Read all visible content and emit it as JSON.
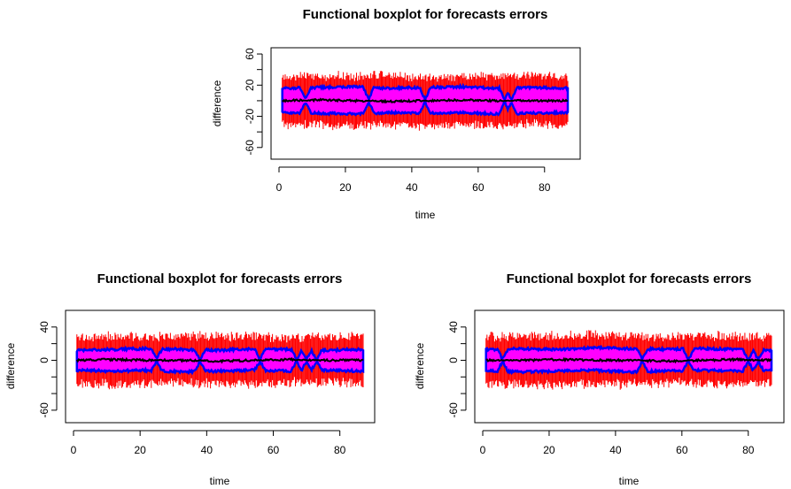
{
  "chart_data": [
    {
      "type": "area",
      "title": "Functional boxplot for forecasts errors",
      "xlabel": "time",
      "ylabel": "difference",
      "xlim": [
        0,
        87
      ],
      "ylim": [
        -75,
        68
      ],
      "xticks": [
        0,
        20,
        40,
        60,
        80
      ],
      "yticks": [
        60,
        20,
        -20,
        -60
      ],
      "grid": false,
      "colors": {
        "outer": "#ff0000",
        "band": "#ff00ff",
        "edge": "#0000ff",
        "median": "#000000"
      },
      "pinch_times": [
        8,
        27,
        44,
        68,
        70
      ],
      "series": [
        {
          "name": "Outer envelope",
          "upper": [
            28,
            30,
            29,
            31,
            28,
            29,
            30,
            31,
            29
          ],
          "lower": [
            -28,
            -29,
            -30,
            -28,
            -31,
            -29,
            -30,
            -28,
            -29
          ]
        },
        {
          "name": "Central region",
          "upper": [
            16,
            17,
            18,
            16,
            17,
            18,
            16,
            17,
            16
          ],
          "lower": [
            -15,
            -16,
            -17,
            -15,
            -16,
            -15,
            -17,
            -16,
            -15
          ]
        },
        {
          "name": "Median",
          "values": [
            0,
            1,
            0,
            -1,
            0,
            1,
            0,
            0,
            0
          ]
        }
      ]
    },
    {
      "type": "area",
      "title": "Functional boxplot for forecasts errors",
      "xlabel": "time",
      "ylabel": "difference",
      "xlim": [
        0,
        87
      ],
      "ylim": [
        -75,
        60
      ],
      "xticks": [
        0,
        20,
        40,
        60,
        80
      ],
      "yticks": [
        40,
        0,
        -60
      ],
      "grid": false,
      "colors": {
        "outer": "#ff0000",
        "band": "#ff00ff",
        "edge": "#0000ff",
        "median": "#000000"
      },
      "pinch_times": [
        25,
        38,
        56,
        67,
        70,
        73
      ],
      "series": [
        {
          "name": "Outer envelope",
          "upper": [
            25,
            27,
            26,
            28,
            26,
            27,
            25,
            26,
            27
          ],
          "lower": [
            -25,
            -27,
            -26,
            -25,
            -27,
            -26,
            -25,
            -24,
            -26
          ]
        },
        {
          "name": "Central region",
          "upper": [
            12,
            13,
            14,
            13,
            12,
            14,
            13,
            12,
            13
          ],
          "lower": [
            -12,
            -13,
            -12,
            -14,
            -13,
            -12,
            -13,
            -12,
            -13
          ]
        },
        {
          "name": "Median",
          "values": [
            0,
            1,
            0,
            0,
            -1,
            0,
            1,
            0,
            0
          ]
        }
      ]
    },
    {
      "type": "area",
      "title": "Functional boxplot for forecasts errors",
      "xlabel": "time",
      "ylabel": "difference",
      "xlim": [
        0,
        87
      ],
      "ylim": [
        -75,
        60
      ],
      "xticks": [
        0,
        20,
        40,
        60,
        80
      ],
      "yticks": [
        40,
        0,
        -60
      ],
      "grid": false,
      "colors": {
        "outer": "#ff0000",
        "band": "#ff00ff",
        "edge": "#0000ff",
        "median": "#000000"
      },
      "pinch_times": [
        6,
        48,
        62,
        80,
        83
      ],
      "series": [
        {
          "name": "Outer envelope",
          "upper": [
            26,
            28,
            27,
            29,
            27,
            26,
            28,
            27,
            26
          ],
          "lower": [
            -26,
            -27,
            -28,
            -26,
            -27,
            -25,
            -26,
            -27,
            -25
          ]
        },
        {
          "name": "Central region",
          "upper": [
            13,
            14,
            13,
            15,
            14,
            13,
            14,
            13,
            12
          ],
          "lower": [
            -13,
            -14,
            -13,
            -12,
            -14,
            -13,
            -12,
            -13,
            -12
          ]
        },
        {
          "name": "Median",
          "values": [
            0,
            0,
            1,
            0,
            0,
            -1,
            0,
            1,
            0
          ]
        }
      ]
    }
  ]
}
